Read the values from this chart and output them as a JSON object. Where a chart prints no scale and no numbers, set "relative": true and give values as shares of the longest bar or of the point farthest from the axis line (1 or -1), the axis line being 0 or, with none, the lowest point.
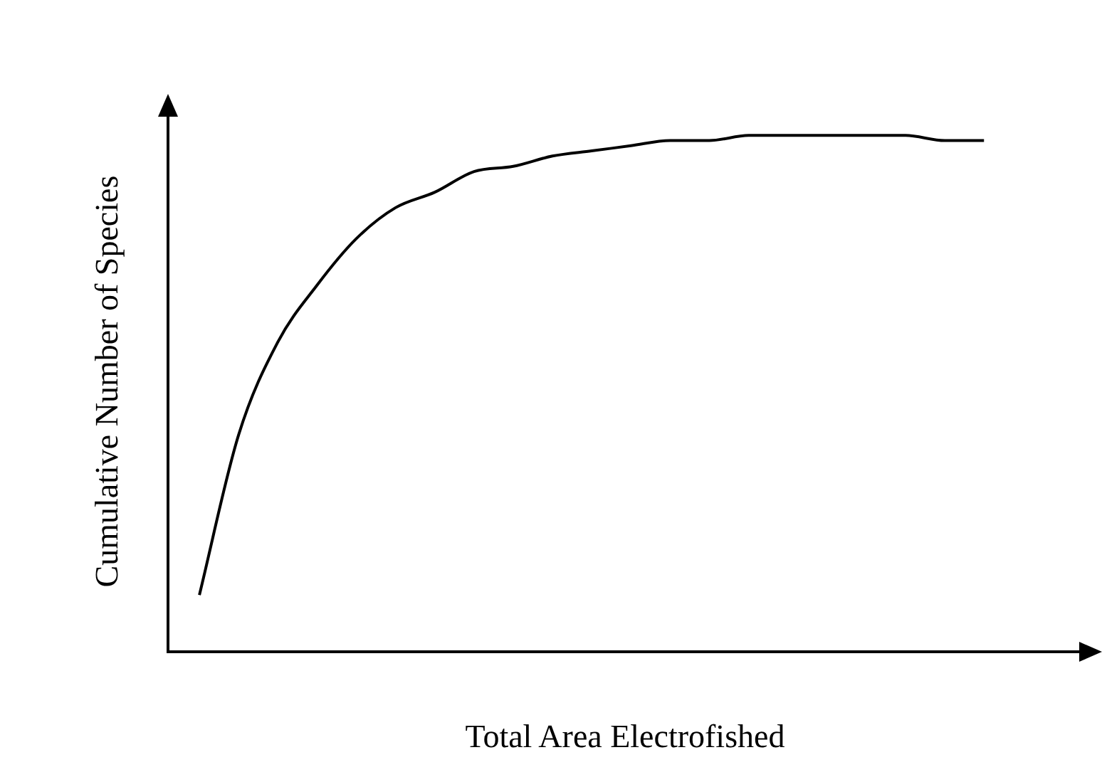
{
  "chart_data": {
    "type": "line",
    "relative": true,
    "xlabel": "Total Area Electrofished",
    "ylabel": "Cumulative Number of Species",
    "categories": [
      null,
      null,
      null,
      null,
      null,
      null,
      null,
      null,
      null,
      null,
      null,
      null,
      null,
      null,
      null,
      null,
      null,
      null,
      null,
      null,
      null
    ],
    "values": [
      0.11,
      0.42,
      0.6,
      0.71,
      0.8,
      0.86,
      0.89,
      0.93,
      0.94,
      0.96,
      0.97,
      0.98,
      0.99,
      0.99,
      1.0,
      1.0,
      1.0,
      1.0,
      1.0,
      0.99,
      0.99
    ],
    "color": "#000000",
    "marker": "none",
    "grid": false,
    "legend": false
  }
}
